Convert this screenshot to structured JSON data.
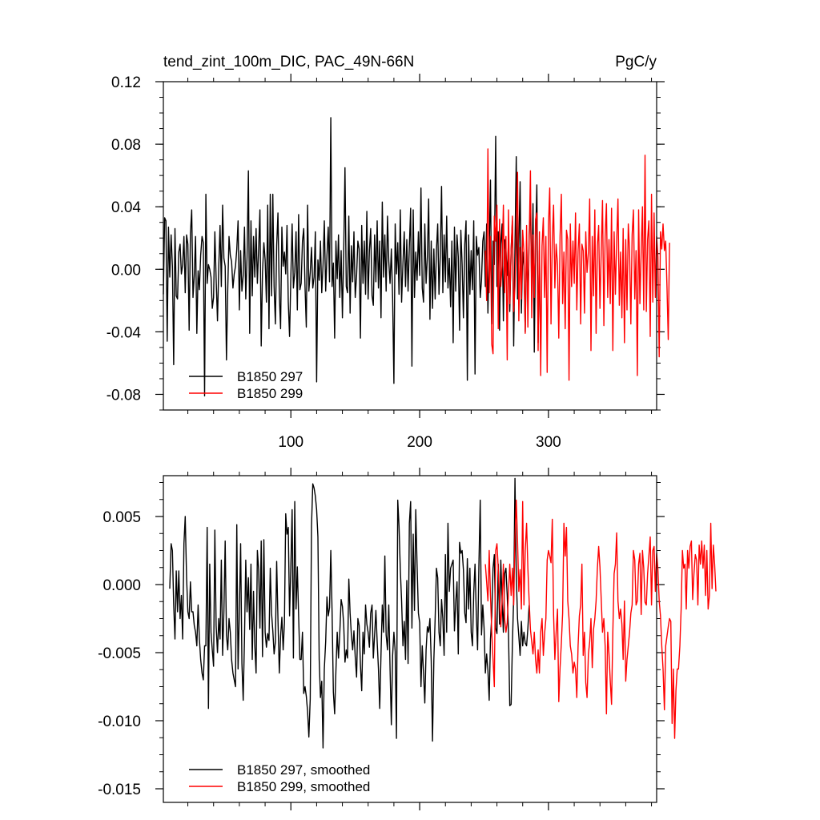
{
  "chart_data": [
    {
      "type": "line",
      "title_left": "tend_zint_100m_DIC, PAC_49N-66N",
      "title_right": "PgC/y",
      "xlabel": "",
      "ylabel": "",
      "xlim": [
        1,
        384
      ],
      "ylim": [
        -0.09,
        0.12
      ],
      "x_ticks": [
        100,
        200,
        300
      ],
      "x_tick_labels": [
        "100",
        "200",
        "300"
      ],
      "y_ticks": [
        -0.08,
        -0.04,
        0.0,
        0.04,
        0.08,
        0.12
      ],
      "y_tick_labels": [
        "-0.08",
        "-0.04",
        "0.00",
        "0.04",
        "0.08",
        "0.12"
      ],
      "legend_position": "bottom-left",
      "series": [
        {
          "name": "B1850 297",
          "color": "#000000",
          "x_start": 1,
          "values": [
            -0.016,
            0.033,
            0.031,
            -0.046,
            0.027,
            -0.005,
            0.022,
            0.002,
            -0.061,
            0.026,
            -0.017,
            -0.019,
            0.011,
            0.016,
            -0.003,
            0.003,
            0.021,
            -0.015,
            0.022,
            0.016,
            -0.039,
            0.023,
            0.038,
            -0.018,
            -0.004,
            0.021,
            -0.041,
            -0.001,
            -0.013,
            0.009,
            0.021,
            0.017,
            -0.081,
            0.048,
            -0.009,
            0.003,
            0.0,
            -0.005,
            -0.025,
            -0.018,
            0.024,
            -0.006,
            -0.033,
            0.002,
            0.028,
            -0.011,
            0.041,
            0.007,
            0.002,
            -0.058,
            -0.013,
            0.021,
            0.009,
            0.005,
            -0.012,
            -0.003,
            0.002,
            0.013,
            0.031,
            -0.026,
            0.012,
            -0.014,
            -0.004,
            0.027,
            -0.019,
            0.008,
            0.063,
            -0.041,
            0.031,
            -0.017,
            0.021,
            -0.005,
            0.026,
            -0.009,
            0.013,
            0.038,
            -0.049,
            -0.002,
            0.017,
            0.006,
            -0.021,
            0.041,
            -0.038,
            0.048,
            -0.017,
            0.048,
            -0.011,
            -0.035,
            0.015,
            0.036,
            -0.016,
            -0.038,
            0.027,
            0.002,
            0.011,
            -0.003,
            0.028,
            -0.021,
            -0.043,
            -0.005,
            0.029,
            -0.012,
            -0.002,
            0.024,
            -0.026,
            0.035,
            -0.013,
            -0.009,
            0.018,
            0.026,
            -0.011,
            -0.037,
            0.041,
            -0.014,
            -0.002,
            0.014,
            -0.012,
            -0.005,
            0.024,
            -0.072,
            0.006,
            -0.007,
            0.018,
            -0.015,
            0.003,
            0.031,
            -0.014,
            0.009,
            0.027,
            -0.008,
            0.097,
            -0.011,
            0.004,
            -0.044,
            0.018,
            -0.006,
            0.022,
            -0.018,
            0.012,
            -0.031,
            0.01,
            0.065,
            -0.011,
            -0.015,
            0.034,
            -0.028,
            0.015,
            -0.008,
            0.024,
            -0.018,
            -0.004,
            0.018,
            0.013,
            -0.044,
            0.028,
            -0.009,
            0.018,
            -0.016,
            0.037,
            -0.019,
            0.012,
            0.026,
            -0.017,
            -0.023,
            0.022,
            -0.008,
            0.031,
            -0.012,
            0.018,
            -0.031,
            0.043,
            -0.005,
            0.022,
            -0.014,
            0.034,
            0.005,
            -0.009,
            0.013,
            -0.018,
            -0.073,
            0.029,
            -0.003,
            0.017,
            -0.016,
            0.038,
            -0.021,
            0.004,
            0.024,
            -0.011,
            0.019,
            -0.014,
            0.015,
            0.039,
            -0.062,
            0.038,
            -0.018,
            0.011,
            -0.007,
            0.024,
            -0.004,
            0.052,
            -0.012,
            -0.021,
            0.029,
            -0.009,
            0.008,
            0.045,
            -0.032,
            0.018,
            -0.025,
            0.013,
            -0.019,
            0.012,
            0.029,
            -0.016,
            0.009,
            0.053,
            -0.015,
            0.022,
            -0.008,
            0.034,
            -0.012,
            0.007,
            -0.024,
            0.018,
            -0.047,
            0.027,
            -0.014,
            0.022,
            0.008,
            -0.039,
            0.025,
            0.003,
            -0.031,
            0.016,
            0.031,
            -0.071,
            0.022,
            -0.016,
            0.012,
            -0.013,
            0.031,
            -0.067,
            0.021,
            0.009,
            0.014,
            -0.018,
            -0.007,
            0.018,
            0.024,
            -0.011,
            0.029,
            -0.028,
            0.012,
            0.057,
            -0.035,
            0.018,
            0.003,
            0.085,
            -0.011,
            0.024,
            -0.039,
            0.016,
            0.029,
            -0.033,
            0.019,
            0.012,
            -0.004,
            0.018,
            -0.027,
            0.013,
            0.031,
            -0.049,
            0.015,
            0.072,
            -0.019,
            0.015,
            0.056,
            -0.028,
            0.011,
            0.002,
            -0.04,
            0.018,
            -0.021,
            0.022,
            0.04,
            -0.012,
            0.042,
            -0.053,
            0.018,
            0.054,
            -0.047,
            0.012,
            -0.052
          ]
        },
        {
          "name": "B1850 299",
          "color": "#ff0000",
          "x_start": 251,
          "values": [
            0.012,
            -0.02,
            0.077,
            -0.015,
            0.021,
            -0.048,
            -0.054,
            0.034,
            0.018,
            0.041,
            -0.038,
            0.032,
            -0.011,
            0.002,
            0.041,
            -0.015,
            0.021,
            -0.058,
            0.038,
            -0.022,
            0.012,
            0.034,
            -0.027,
            -0.011,
            0.025,
            0.062,
            -0.033,
            0.014,
            -0.019,
            0.025,
            0.011,
            -0.041,
            0.028,
            -0.037,
            0.018,
            0.063,
            -0.031,
            0.022,
            -0.018,
            0.032,
            0.036,
            -0.052,
            0.024,
            -0.068,
            0.015,
            0.033,
            -0.018,
            0.021,
            -0.066,
            0.028,
            0.052,
            -0.035,
            0.019,
            0.041,
            -0.012,
            0.016,
            0.003,
            -0.044,
            0.021,
            0.048,
            -0.022,
            0.011,
            -0.038,
            0.025,
            0.019,
            -0.071,
            0.029,
            -0.011,
            0.018,
            -0.009,
            0.036,
            -0.026,
            0.012,
            0.029,
            -0.035,
            0.016,
            0.012,
            -0.028,
            0.024,
            -0.002,
            0.011,
            0.045,
            -0.052,
            0.021,
            -0.017,
            0.038,
            -0.041,
            0.015,
            0.028,
            -0.025,
            0.011,
            0.044,
            -0.036,
            0.021,
            0.042,
            -0.018,
            0.019,
            -0.022,
            0.039,
            -0.052,
            0.024,
            -0.016,
            0.018,
            0.045,
            -0.023,
            0.011,
            -0.031,
            0.026,
            -0.047,
            0.019,
            -0.026,
            0.029,
            0.012,
            -0.035,
            0.022,
            0.038,
            -0.019,
            0.012,
            -0.068,
            0.038,
            -0.022,
            0.011,
            0.04,
            -0.026,
            0.073,
            -0.027,
            0.019,
            0.031,
            -0.043,
            0.048,
            -0.021,
            0.036,
            -0.018,
            0.021,
            0.008,
            -0.056,
            0.024,
            0.013,
            0.029,
            0.012,
            0.018,
            -0.011,
            -0.045,
            0.017
          ]
        }
      ]
    },
    {
      "type": "line",
      "title": "",
      "xlabel": "",
      "ylabel": "",
      "xlim": [
        1,
        384
      ],
      "ylim": [
        -0.016,
        0.008
      ],
      "x_ticks": [
        100,
        200,
        300
      ],
      "y_ticks": [
        -0.015,
        -0.01,
        -0.005,
        0.0,
        0.005
      ],
      "y_tick_labels": [
        "-0.015",
        "-0.010",
        "-0.005",
        "0.000",
        "0.005"
      ],
      "legend_position": "bottom-left",
      "series": [
        {
          "name": "B1850 297, smoothed",
          "color": "#000000",
          "x_start": 6,
          "values": [
            -0.0003,
            0.003,
            0.0025,
            -0.0015,
            -0.004,
            0.001,
            -0.002,
            0.001,
            -0.0025,
            -0.0008,
            -0.004,
            0.003,
            0.005,
            0.0005,
            -0.002,
            -0.0025,
            0.0002,
            -0.002,
            -0.002,
            -0.003,
            -0.0035,
            -0.0045,
            -0.0015,
            -0.004,
            -0.0055,
            -0.0065,
            -0.007,
            -0.0045,
            -0.0045,
            0.0042,
            -0.0091,
            0.0015,
            -0.0035,
            -0.0048,
            -0.006,
            0.004,
            -0.003,
            -0.005,
            -0.0025,
            -0.004,
            0.0018,
            -0.0052,
            -0.002,
            0.0032,
            -0.0037,
            -0.0048,
            -0.0025,
            -0.0035,
            -0.0055,
            -0.0065,
            -0.007,
            -0.0075,
            0.0044,
            -0.0062,
            -0.002,
            0.003,
            -0.0058,
            -0.0085,
            -0.004,
            0.0018,
            -0.002,
            0.0005,
            -0.0033,
            0.0015,
            -0.0055,
            -0.0005,
            -0.0045,
            -0.0065,
            0.0025,
            0.0011,
            -0.0032,
            0.0032,
            -0.0053,
            0.0033,
            -0.0035,
            -0.0046,
            -0.0036,
            -0.0041,
            0.0012,
            -0.0021,
            -0.0034,
            -0.0051,
            -0.0042,
            0.0017,
            -0.0025,
            -0.0065,
            -0.0038,
            -0.0024,
            -0.0048,
            -0.0028,
            0.0052,
            0.0037,
            0.0042,
            -0.0023,
            0.0013,
            0.0055,
            -0.0054,
            0.0061,
            -0.0018,
            0.0013,
            -0.0023,
            -0.0055,
            -0.0055,
            -0.0035,
            -0.008,
            -0.0075,
            -0.0082,
            -0.0093,
            -0.0112,
            -0.0084,
            0.0043,
            0.0074,
            0.0071,
            0.0065,
            0.0055,
            0.0035,
            -0.0055,
            -0.0083,
            -0.0071,
            -0.012,
            -0.0062,
            -0.0042,
            -0.0009,
            -0.0023,
            -0.0017,
            0.0025,
            -0.002,
            -0.0079,
            -0.0095,
            -0.0063,
            -0.0035,
            -0.0054,
            -0.0036,
            -0.0011,
            -0.0016,
            -0.0029,
            -0.0057,
            -0.0048,
            -0.0054,
            0.0004,
            -0.0021,
            -0.0037,
            -0.0048,
            -0.0034,
            -0.0053,
            -0.0068,
            -0.0025,
            -0.003,
            -0.0059,
            -0.0078,
            -0.0035,
            -0.0051,
            -0.0015,
            -0.0029,
            -0.0035,
            -0.0046,
            -0.0021,
            -0.0015,
            -0.0054,
            -0.0037,
            -0.0019,
            -0.0042,
            -0.0062,
            -0.0091,
            -0.0051,
            -0.0015,
            -0.0035,
            0.0021,
            -0.0037,
            -0.0048,
            -0.0015,
            -0.0062,
            -0.0103,
            -0.0052,
            -0.0035,
            -0.0049,
            -0.0113,
            0.0062,
            0.0043,
            0.0011,
            -0.0012,
            -0.0045,
            -0.0027,
            -0.0055,
            0.0003,
            -0.0058,
            0.0045,
            0.0061,
            -0.0032,
            0.0037,
            -0.0019,
            0.0055,
            0.0015,
            -0.0021,
            -0.0028,
            -0.0075,
            -0.0045,
            -0.0065,
            -0.0087,
            -0.0048,
            -0.0031,
            -0.0035,
            -0.0025,
            -0.0056,
            -0.0115,
            -0.0055,
            -0.0025,
            0.0012,
            0.0005,
            -0.0035,
            -0.0045,
            -0.0011,
            -0.0025,
            -0.0052,
            0.0022,
            -0.0035,
            0.0045,
            -0.0005,
            0.0012,
            0.0015,
            0.0018,
            -0.0034,
            -0.0013,
            0.0002,
            -0.0051,
            0.0031,
            0.0023,
            0.0025,
            0.0011,
            -0.0021,
            -0.0028,
            0.0019,
            -0.0018,
            0.0012,
            -0.0035,
            -0.0045,
            -0.0006,
            0.0015,
            -0.0022,
            -0.0048,
            0.0013,
            0.0062,
            -0.0037,
            -0.0015,
            -0.0032,
            -0.0065,
            -0.0051,
            -0.0063,
            -0.0085,
            -0.004,
            -0.0023,
            0.0012,
            0.0022,
            -0.0032,
            -0.0036,
            0.0015,
            -0.0029,
            0.0018,
            -0.0012,
            -0.0035,
            0.0008,
            0.0012,
            -0.0008,
            -0.0035,
            -0.0089,
            -0.0088,
            -0.0043,
            -0.0009,
            0.0078,
            0.0008,
            -0.0025,
            -0.0038,
            -0.0052,
            -0.0027,
            -0.0045,
            -0.0035,
            -0.0043,
            -0.0045,
            -0.0032,
            -0.0015
          ]
        },
        {
          "name": "B1850 299, smoothed",
          "color": "#ff0000",
          "x_start": 251,
          "values": [
            0.0015,
            0.0002,
            -0.0012,
            0.0025,
            -0.0008,
            -0.0035,
            -0.0055,
            -0.0075,
            0.0025,
            0.003,
            0.0012,
            -0.0012,
            -0.0031,
            -0.0012,
            0.0015,
            -0.0025,
            -0.0035,
            -0.0028,
            -0.0006,
            0.0015,
            -0.0008,
            0.0012,
            -0.0015,
            0.0035,
            0.0062,
            0.0032,
            -0.0005,
            0.0011,
            -0.0018,
            0.0061,
            -0.0015,
            0.0025,
            0.0045,
            0.0012,
            -0.0012,
            -0.0033,
            -0.0042,
            -0.0051,
            -0.0035,
            -0.0055,
            -0.0065,
            -0.0048,
            -0.0065,
            -0.0035,
            -0.0025,
            -0.0052,
            -0.0036,
            -0.0025,
            0.0018,
            0.0025,
            0.0021,
            0.0016,
            0.0048,
            -0.0022,
            -0.0055,
            -0.0035,
            -0.0018,
            -0.0086,
            -0.0061,
            -0.0043,
            -0.0021,
            0.0045,
            0.0021,
            0.0042,
            -0.0012,
            -0.0025,
            -0.0045,
            -0.0051,
            -0.0065,
            -0.0057,
            -0.0062,
            -0.0083,
            -0.0045,
            -0.0023,
            -0.0015,
            0.0015,
            -0.0052,
            -0.0035,
            -0.0072,
            -0.0083,
            -0.0051,
            -0.0042,
            -0.0025,
            -0.0061,
            -0.0033,
            -0.0025,
            -0.0012,
            0.0012,
            0.0028,
            0.0013,
            -0.0011,
            -0.0035,
            -0.0025,
            -0.0045,
            -0.0095,
            -0.0035,
            -0.0051,
            -0.0071,
            -0.0088,
            -0.0035,
            0.0008,
            0.0015,
            0.0038,
            -0.0012,
            -0.0025,
            -0.0018,
            -0.0029,
            -0.0055,
            -0.0012,
            -0.0071,
            -0.0055,
            -0.0045,
            -0.0035,
            -0.0021,
            -0.0015,
            0.0025,
            0.0018,
            -0.0015,
            -0.0012,
            0.0015,
            0.0023,
            -0.0022,
            0.0025,
            0.0012,
            -0.0013,
            -0.0015,
            0.0008,
            0.0021,
            0.0035,
            -0.0015,
            0.0025,
            0.0028,
            -0.0005,
            0.0023,
            0.0011,
            -0.0012,
            -0.0023,
            -0.0045,
            -0.0062,
            -0.0092,
            -0.0045,
            -0.0038,
            -0.0031,
            -0.0025,
            -0.0027,
            -0.0102,
            -0.0062,
            -0.0113,
            -0.0078,
            -0.0062,
            -0.0062,
            -0.0045,
            -0.0018,
            0.0025,
            0.0012,
            0.0015,
            -0.0018,
            0.0025,
            0.0012,
            0.0028,
            0.0032,
            -0.0011,
            0.0008,
            0.0022,
            0.0018,
            -0.0015,
            0.0029,
            0.0015,
            0.0032,
            0.0012,
            0.0029,
            -0.0008,
            0.0025,
            -0.0018,
            -0.0008,
            0.0045,
            -0.0003,
            0.0029,
            0.0015,
            -0.0005
          ]
        }
      ]
    }
  ]
}
